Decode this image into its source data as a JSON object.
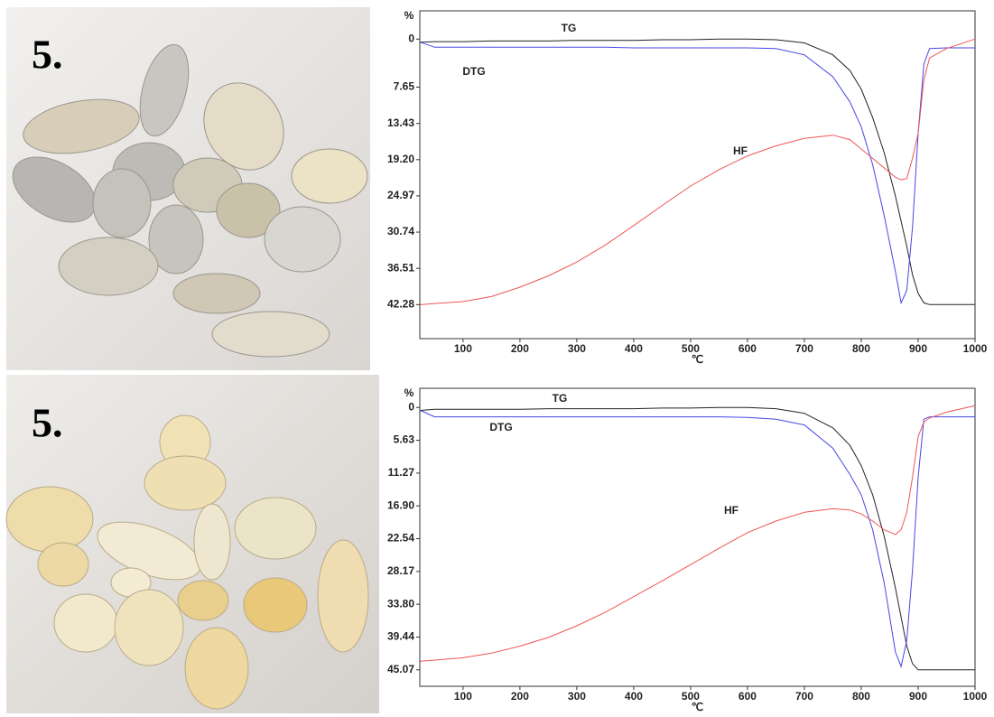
{
  "photos": [
    {
      "label": "5."
    },
    {
      "label": "5."
    }
  ],
  "chart_data": [
    {
      "type": "line",
      "y_label": "%",
      "x_label": "℃",
      "xlim": [
        24,
        1000
      ],
      "xticks": [
        100,
        200,
        300,
        400,
        500,
        600,
        700,
        800,
        900,
        1000
      ],
      "ylim": [
        47.7,
        -4.5
      ],
      "yticks": [
        0,
        7.65,
        13.43,
        {
          "value": 19.2,
          "label": "19.20"
        },
        24.97,
        30.74,
        36.51,
        42.28
      ],
      "x": [
        25,
        50,
        100,
        150,
        200,
        250,
        300,
        350,
        400,
        450,
        500,
        550,
        600,
        650,
        700,
        750,
        780,
        800,
        820,
        840,
        860,
        870,
        880,
        890,
        900,
        910,
        920,
        950,
        1000
      ],
      "series": [
        {
          "name": "TG",
          "color": "#222222",
          "values": [
            0.5,
            0.4,
            0.4,
            0.3,
            0.3,
            0.3,
            0.2,
            0.2,
            0.2,
            0.1,
            0.1,
            0,
            0,
            0.1,
            0.6,
            2.5,
            5,
            8,
            12.5,
            18,
            25,
            29,
            33,
            37.5,
            40.5,
            42,
            42.28,
            42.28,
            42.28
          ]
        },
        {
          "name": "DTG",
          "color": "#4646e6",
          "values": [
            0.5,
            1.3,
            1.3,
            1.3,
            1.3,
            1.3,
            1.3,
            1.3,
            1.4,
            1.4,
            1.4,
            1.4,
            1.4,
            1.5,
            2.5,
            6,
            10,
            14,
            20,
            28,
            37,
            42,
            40,
            30,
            15,
            4,
            1.5,
            1.4,
            1.4
          ]
        },
        {
          "name": "HF",
          "color": "#ee5555",
          "values": [
            42.3,
            42.1,
            41.8,
            41,
            39.5,
            37.7,
            35.5,
            32.8,
            29.7,
            26.5,
            23.4,
            20.8,
            18.6,
            17,
            15.8,
            15.3,
            16,
            17.5,
            19,
            20.5,
            22,
            22.4,
            22.2,
            19,
            15,
            6.5,
            3,
            1.5,
            0
          ]
        }
      ]
    },
    {
      "type": "line",
      "y_label": "%",
      "x_label": "℃",
      "xlim": [
        24,
        1000
      ],
      "xticks": [
        100,
        200,
        300,
        400,
        500,
        600,
        700,
        800,
        900,
        1000
      ],
      "ylim": [
        47.9,
        -3.3
      ],
      "yticks": [
        0,
        5.63,
        11.27,
        {
          "value": 16.9,
          "label": "16.90"
        },
        22.54,
        28.17,
        {
          "value": 33.8,
          "label": "33.80"
        },
        39.44,
        45.07
      ],
      "x": [
        25,
        50,
        100,
        150,
        200,
        250,
        300,
        350,
        400,
        450,
        500,
        550,
        600,
        650,
        700,
        750,
        780,
        800,
        820,
        840,
        860,
        870,
        880,
        890,
        900,
        910,
        920,
        950,
        1000
      ],
      "series": [
        {
          "name": "TG",
          "color": "#222222",
          "values": [
            0.5,
            0.3,
            0.3,
            0.3,
            0.3,
            0.2,
            0.2,
            0.2,
            0.2,
            0.1,
            0.1,
            0,
            0,
            0.2,
            1,
            3.5,
            6.5,
            10,
            15,
            22,
            31,
            36,
            41,
            44,
            45.07,
            45.07,
            45.07,
            45.07,
            45.07
          ]
        },
        {
          "name": "DTG",
          "color": "#4646e6",
          "values": [
            0.5,
            1.6,
            1.6,
            1.6,
            1.6,
            1.6,
            1.6,
            1.6,
            1.6,
            1.6,
            1.6,
            1.6,
            1.7,
            2,
            3,
            7,
            11.5,
            15,
            21,
            30,
            42,
            44.5,
            40,
            28,
            12,
            2,
            1.6,
            1.6,
            1.6
          ]
        },
        {
          "name": "HF",
          "color": "#ee5555",
          "values": [
            43.6,
            43.4,
            43,
            42.2,
            41,
            39.5,
            37.5,
            35.2,
            32.5,
            29.8,
            27,
            24.2,
            21.5,
            19.5,
            18,
            17.4,
            17.6,
            18.3,
            19.5,
            21,
            21.8,
            21,
            18,
            12,
            5,
            2.5,
            1.8,
            0.8,
            -0.3
          ]
        }
      ]
    }
  ]
}
